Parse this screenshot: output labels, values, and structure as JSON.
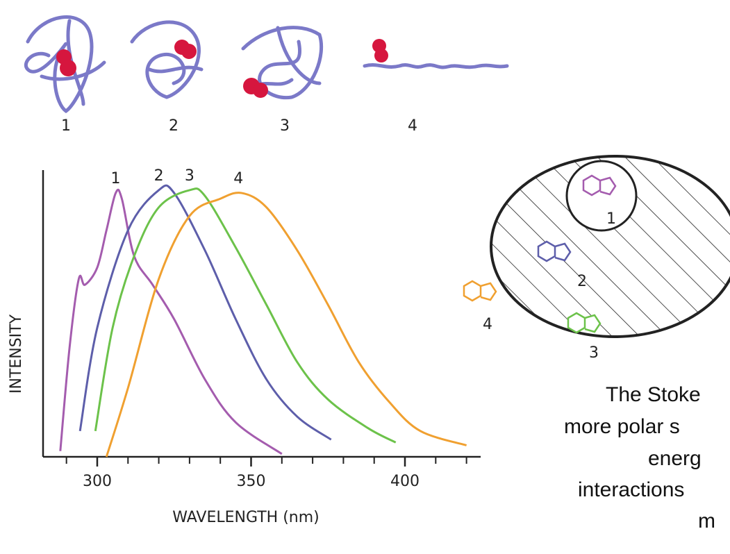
{
  "proteins": {
    "labels": [
      "1",
      "2",
      "3",
      "4"
    ]
  },
  "chart_data": {
    "type": "line",
    "x_label": "WAVELENGTH (nm)",
    "y_label": "INTENSITY",
    "xlim": [
      282.4,
      424.6
    ],
    "ylim": [
      0,
      100
    ],
    "xticks": [
      300,
      350,
      400
    ],
    "minor_xticks": [
      290,
      310,
      320,
      330,
      340,
      360,
      370,
      380,
      390,
      410,
      420
    ],
    "series": [
      {
        "name": "1",
        "color": "#a45cae",
        "x": [
          288,
          291,
          294,
          296,
          300,
          303,
          306,
          308,
          312,
          318,
          325,
          335,
          345,
          360
        ],
        "values": [
          2,
          38,
          62,
          60,
          66,
          79,
          92,
          90,
          70,
          60,
          48,
          27,
          12,
          1
        ]
      },
      {
        "name": "2",
        "color": "#5d5eaa",
        "x": [
          294.4,
          300,
          310,
          320,
          325,
          335,
          345,
          355,
          365,
          376
        ],
        "values": [
          9,
          45,
          79,
          93,
          92,
          72,
          48,
          27,
          14,
          6
        ]
      },
      {
        "name": "3",
        "color": "#6cc24a",
        "x": [
          299.4,
          305,
          312,
          320,
          330,
          335,
          345,
          355,
          365,
          375,
          388,
          397
        ],
        "values": [
          9,
          45,
          70,
          87,
          93,
          91,
          73,
          53,
          33,
          20,
          10,
          5
        ]
      },
      {
        "name": "4",
        "color": "#f0a030",
        "x": [
          303,
          310,
          320,
          330,
          340,
          347,
          355,
          365,
          375,
          385,
          395,
          405,
          420
        ],
        "values": [
          0,
          24,
          62,
          84,
          90,
          92,
          87,
          72,
          53,
          33,
          19,
          9,
          4
        ]
      }
    ]
  },
  "diagram": {
    "labels": [
      "1",
      "2",
      "3",
      "4"
    ]
  },
  "slide_text": {
    "lines": [
      "The Stoke",
      "more polar s",
      "energ",
      "interactions",
      "m"
    ]
  }
}
